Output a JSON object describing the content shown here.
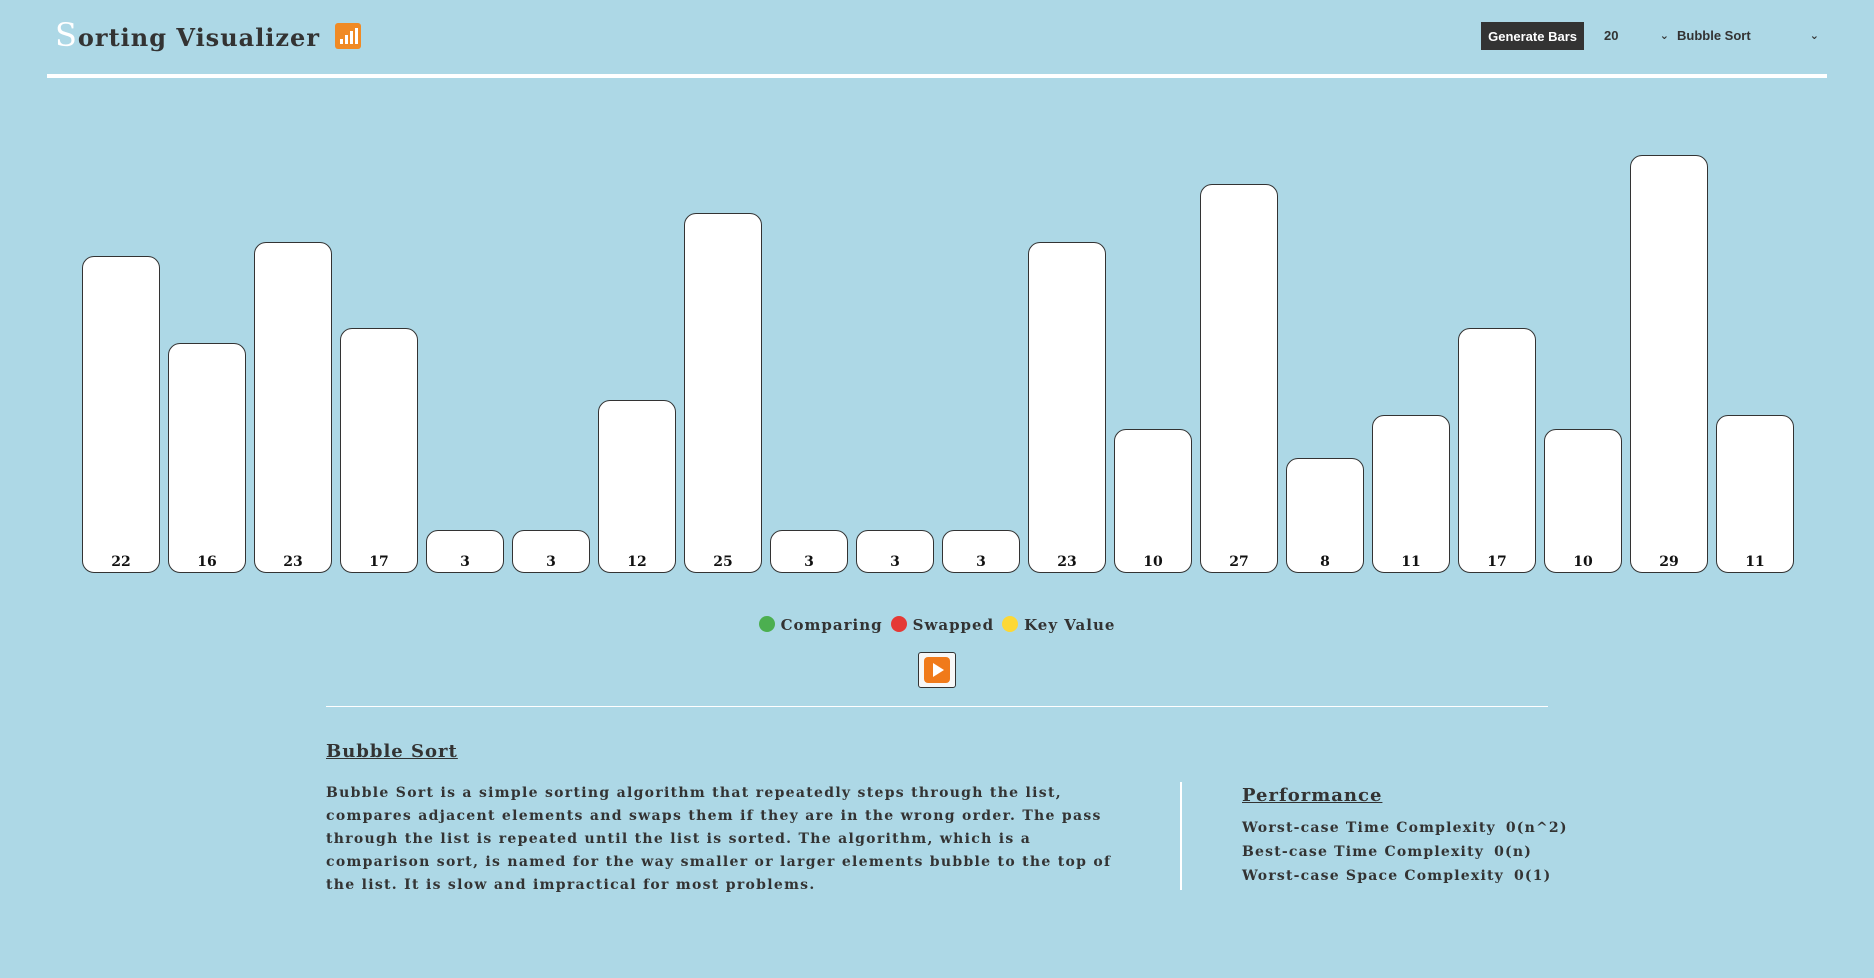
{
  "header": {
    "title_first": "S",
    "title_rest": "orting Visualizer",
    "icon": "signal-bars-icon",
    "generate_label": "Generate Bars",
    "size_value": "20",
    "algorithm_value": "Bubble Sort"
  },
  "bars": {
    "values": [
      22,
      16,
      23,
      17,
      3,
      3,
      12,
      25,
      3,
      3,
      3,
      23,
      10,
      27,
      8,
      11,
      17,
      10,
      29,
      11
    ],
    "labels": [
      "22",
      "16",
      "23",
      "17",
      "3",
      "3",
      "12",
      "25",
      "3",
      "3",
      "3",
      "23",
      "10",
      "27",
      "8",
      "11",
      "17",
      "10",
      "29",
      "11"
    ],
    "color": "#ffffff",
    "border_color": "#333333"
  },
  "legend": {
    "items": [
      {
        "label": "Comparing",
        "color": "#4caf50"
      },
      {
        "label": "Swapped",
        "color": "#e53935"
      },
      {
        "label": "Key Value",
        "color": "#fdd835"
      }
    ]
  },
  "play": {
    "icon": "play-icon",
    "color": "#f07a1a"
  },
  "info": {
    "title": "Bubble Sort",
    "description": "Bubble Sort is a simple sorting algorithm that repeatedly steps through the list, compares adjacent elements and swaps them if they are in the wrong order. The pass through the list is repeated until the list is sorted. The algorithm, which is a comparison sort, is named for the way smaller or larger elements bubble to the top of the list. It is slow and impractical for most problems."
  },
  "performance": {
    "title": "Performance",
    "rows": [
      {
        "label": "Worst-case Time Complexity",
        "value": "0(n^2)"
      },
      {
        "label": "Best-case Time Complexity",
        "value": "0(n)"
      },
      {
        "label": "Worst-case Space Complexity",
        "value": "0(1)"
      }
    ]
  },
  "colors": {
    "background": "#add8e6",
    "text": "#333333",
    "button_dark": "#333333"
  }
}
